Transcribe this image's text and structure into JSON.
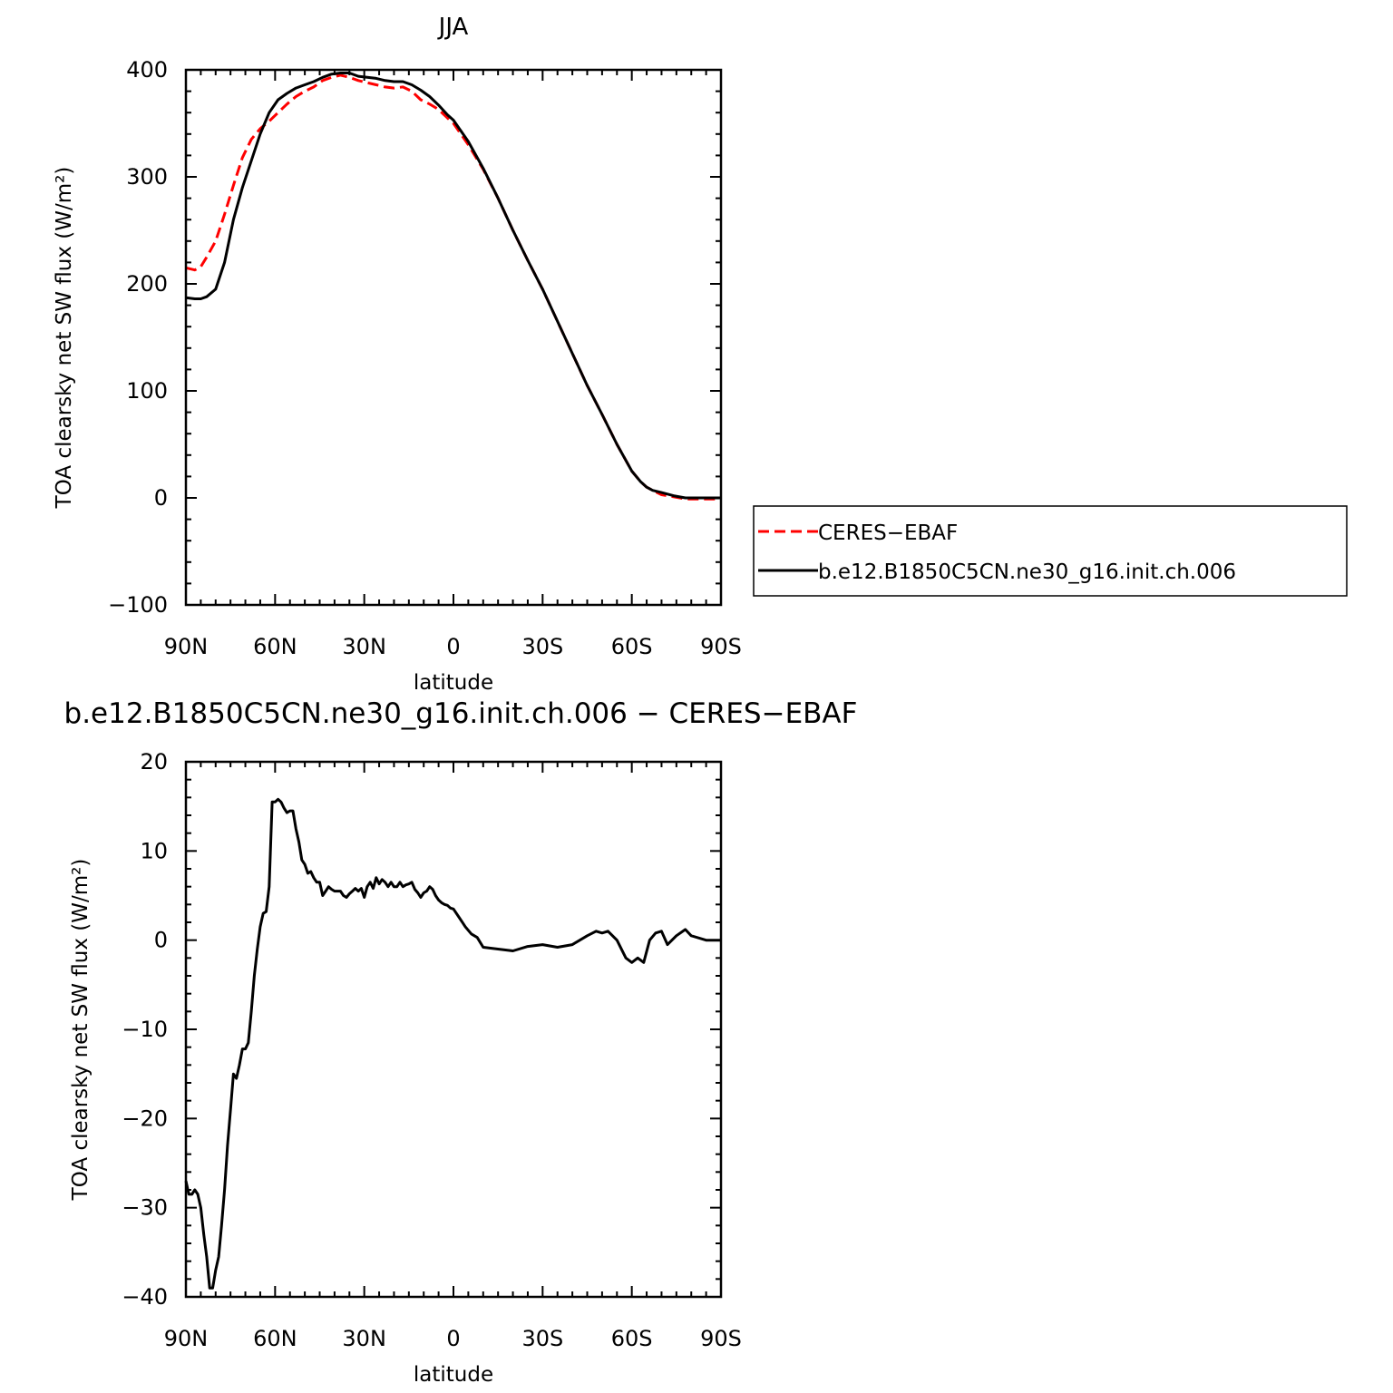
{
  "chart_data": [
    {
      "type": "line",
      "title": "JJA",
      "xlabel": "latitude",
      "ylabel": "TOA clearsky net SW flux (W/m²)",
      "xlim": [
        90,
        -90
      ],
      "ylim": [
        -100,
        400
      ],
      "xticks": [
        {
          "v": 90,
          "label": "90N"
        },
        {
          "v": 60,
          "label": "60N"
        },
        {
          "v": 30,
          "label": "30N"
        },
        {
          "v": 0,
          "label": "0"
        },
        {
          "v": -30,
          "label": "30S"
        },
        {
          "v": -60,
          "label": "60S"
        },
        {
          "v": -90,
          "label": "90S"
        }
      ],
      "yticks": [
        {
          "v": 400,
          "label": "400"
        },
        {
          "v": 300,
          "label": "300"
        },
        {
          "v": 200,
          "label": "200"
        },
        {
          "v": 100,
          "label": "100"
        },
        {
          "v": 0,
          "label": "0"
        },
        {
          "v": -100,
          "label": "−100"
        }
      ],
      "legend": [
        {
          "label": "CERES−EBAF",
          "color": "#ff0000",
          "dash": "dashed"
        },
        {
          "label": "b.e12.B1850C5CN.ne30_g16.init.ch.006",
          "color": "#000000",
          "dash": "solid"
        }
      ],
      "series": [
        {
          "color": "#ff0000",
          "dash": "dashed",
          "x": [
            90,
            87,
            85,
            83,
            80,
            77,
            74,
            71,
            68,
            65,
            62,
            59,
            56,
            53,
            50,
            47,
            44,
            41,
            38,
            35,
            32,
            29,
            26,
            23,
            20,
            17,
            14,
            11,
            8,
            5,
            2,
            0,
            -5,
            -10,
            -15,
            -20,
            -25,
            -30,
            -35,
            -40,
            -45,
            -50,
            -55,
            -60,
            -63,
            -65,
            -67,
            -70,
            -74,
            -78,
            -82,
            -86,
            -90
          ],
          "y": [
            215,
            213,
            216,
            225,
            240,
            265,
            292,
            318,
            335,
            345,
            352,
            360,
            368,
            375,
            380,
            384,
            390,
            393,
            395,
            393,
            390,
            388,
            386,
            384,
            383,
            384,
            380,
            372,
            368,
            363,
            355,
            350,
            330,
            307,
            280,
            250,
            222,
            195,
            165,
            135,
            105,
            78,
            50,
            25,
            15,
            10,
            7,
            3,
            1,
            -1,
            -1,
            -1,
            -1
          ]
        },
        {
          "color": "#000000",
          "dash": "solid",
          "x": [
            90,
            87,
            85,
            83,
            80,
            77,
            74,
            71,
            68,
            65,
            62,
            59,
            56,
            53,
            50,
            47,
            44,
            41,
            38,
            35,
            32,
            29,
            26,
            23,
            20,
            17,
            14,
            11,
            8,
            5,
            2,
            0,
            -5,
            -10,
            -15,
            -20,
            -25,
            -30,
            -35,
            -40,
            -45,
            -50,
            -55,
            -60,
            -63,
            -65,
            -67,
            -70,
            -74,
            -78,
            -82,
            -86,
            -90
          ],
          "y": [
            187,
            186,
            186,
            188,
            195,
            220,
            260,
            290,
            315,
            340,
            360,
            372,
            378,
            383,
            386,
            389,
            393,
            396,
            397,
            397,
            394,
            393,
            392,
            390,
            389,
            389,
            386,
            381,
            375,
            367,
            358,
            353,
            333,
            308,
            280,
            250,
            222,
            195,
            165,
            135,
            105,
            78,
            50,
            25,
            15,
            10,
            7,
            5,
            2,
            0,
            0,
            0,
            0
          ]
        }
      ]
    },
    {
      "type": "line",
      "title": "b.e12.B1850C5CN.ne30_g16.init.ch.006 − CERES−EBAF",
      "xlabel": "latitude",
      "ylabel": "TOA clearsky net SW flux (W/m²)",
      "xlim": [
        90,
        -90
      ],
      "ylim": [
        -40,
        20
      ],
      "xticks": [
        {
          "v": 90,
          "label": "90N"
        },
        {
          "v": 60,
          "label": "60N"
        },
        {
          "v": 30,
          "label": "30N"
        },
        {
          "v": 0,
          "label": "0"
        },
        {
          "v": -30,
          "label": "30S"
        },
        {
          "v": -60,
          "label": "60S"
        },
        {
          "v": -90,
          "label": "90S"
        }
      ],
      "yticks": [
        {
          "v": 20,
          "label": "20"
        },
        {
          "v": 10,
          "label": "10"
        },
        {
          "v": 0,
          "label": "0"
        },
        {
          "v": -10,
          "label": "−10"
        },
        {
          "v": -20,
          "label": "−20"
        },
        {
          "v": -30,
          "label": "−30"
        },
        {
          "v": -40,
          "label": "−40"
        }
      ],
      "series": [
        {
          "color": "#000000",
          "dash": "solid",
          "x": [
            90,
            89,
            88,
            87,
            86,
            85,
            84,
            83,
            82,
            81,
            80,
            79,
            78,
            77,
            76,
            75,
            74,
            73,
            72,
            71,
            70,
            69,
            68,
            67,
            66,
            65,
            64,
            63,
            62,
            61,
            60,
            59,
            58,
            57,
            56,
            55,
            54,
            53,
            52,
            51,
            50,
            49,
            48,
            47,
            46,
            45,
            44,
            43,
            42,
            41,
            40,
            39,
            38,
            37,
            36,
            35,
            34,
            33,
            32,
            31,
            30,
            29,
            28,
            27,
            26,
            25,
            24,
            23,
            22,
            21,
            20,
            19,
            18,
            17,
            16,
            15,
            14,
            13,
            12,
            11,
            10,
            9,
            8,
            7,
            6,
            5,
            4,
            3,
            2,
            1,
            0,
            -2,
            -4,
            -6,
            -8,
            -10,
            -15,
            -20,
            -25,
            -30,
            -35,
            -40,
            -45,
            -48,
            -50,
            -52,
            -55,
            -58,
            -60,
            -62,
            -64,
            -66,
            -68,
            -70,
            -72,
            -75,
            -78,
            -80,
            -85,
            -90
          ],
          "y": [
            -27,
            -28.5,
            -28.5,
            -28,
            -28.5,
            -30,
            -33,
            -35.5,
            -39,
            -39,
            -37,
            -35.5,
            -32,
            -28,
            -23,
            -19,
            -15,
            -15.5,
            -14,
            -12.2,
            -12.2,
            -11.5,
            -8,
            -4,
            -1,
            1.5,
            3,
            3.2,
            6,
            15.5,
            15.5,
            15.8,
            15.5,
            14.8,
            14.3,
            14.5,
            14.5,
            12.5,
            11,
            9,
            8.5,
            7.5,
            7.7,
            7,
            6.5,
            6.5,
            5,
            5.5,
            6,
            5.7,
            5.5,
            5.5,
            5.5,
            5,
            4.8,
            5.2,
            5.5,
            5.8,
            5.5,
            5.8,
            4.8,
            6,
            6.5,
            5.8,
            7,
            6.3,
            6.8,
            6.5,
            6,
            6.5,
            6,
            6,
            6.5,
            6,
            6.2,
            6.3,
            6.5,
            5.7,
            5.3,
            4.8,
            5.3,
            5.5,
            6,
            5.7,
            5,
            4.5,
            4.2,
            4,
            3.9,
            3.6,
            3.5,
            2.5,
            1.5,
            0.7,
            0.3,
            -0.8,
            -1,
            -1.2,
            -0.7,
            -0.5,
            -0.8,
            -0.5,
            0.5,
            1,
            0.8,
            1,
            0,
            -2,
            -2.5,
            -2,
            -2.5,
            0,
            0.8,
            1,
            -0.5,
            0.5,
            1.2,
            0.5,
            0,
            0
          ]
        }
      ]
    }
  ]
}
